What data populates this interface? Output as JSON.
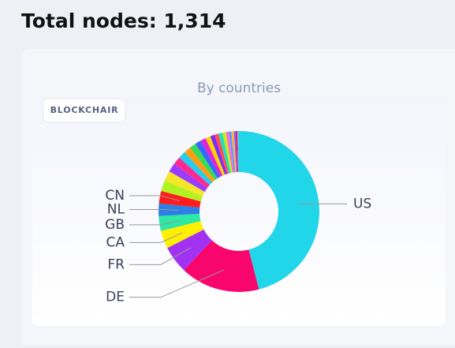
{
  "page_title": "Total nodes: 1,314",
  "chart_data": {
    "type": "donut",
    "title": "By countries",
    "watermark": "BLOCKCHAIR",
    "categories": [
      "US",
      "DE",
      "FR",
      "CA",
      "GB",
      "NL",
      "CN",
      null,
      null,
      null,
      null,
      null,
      null,
      null,
      null,
      null,
      null,
      null,
      null,
      null,
      null,
      null,
      null,
      null,
      null,
      null,
      null
    ],
    "values": [
      46,
      16,
      5.5,
      3.6,
      3,
      2.5,
      2.5,
      2.2,
      2.0,
      1.8,
      1.6,
      1.5,
      1.4,
      1.3,
      1.2,
      1.1,
      1.0,
      0.9,
      0.8,
      0.8,
      0.7,
      0.6,
      0.5,
      0.5,
      0.4,
      0.3,
      0.3
    ],
    "colors": [
      "#22d6ea",
      "#f8066e",
      "#a232f2",
      "#fff000",
      "#2ee8a4",
      "#2b7fe6",
      "#ff1c1c",
      "#b2f222",
      "#f5e62a",
      "#9b3cff",
      "#ff2a90",
      "#26cdee",
      "#ff9d12",
      "#35dd5a",
      "#3a66ff",
      "#e024d8",
      "#ffd400",
      "#7a2cff",
      "#ff4d4d",
      "#1ee0c0",
      "#c8e820",
      "#ff6ad5",
      "#5a9cff",
      "#ffb347",
      "#8e5cf0",
      "#f06",
      "#4dd"
    ]
  }
}
